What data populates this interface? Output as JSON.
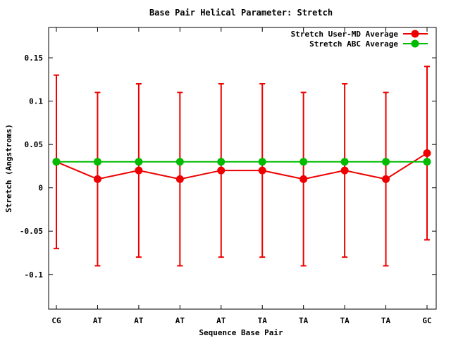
{
  "chart_data": {
    "type": "line",
    "title": "Base Pair Helical Parameter: Stretch",
    "xlabel": "Sequence Base Pair",
    "ylabel": "Stretch (Angstroms)",
    "categories": [
      "CG",
      "AT",
      "AT",
      "AT",
      "AT",
      "TA",
      "TA",
      "TA",
      "TA",
      "GC"
    ],
    "ylim": [
      -0.14,
      0.185
    ],
    "yticks": [
      -0.1,
      -0.05,
      0,
      0.05,
      0.1,
      0.15
    ],
    "ytick_labels": [
      "-0.1",
      "-0.05",
      "0",
      "0.05",
      "0.1",
      "0.15"
    ],
    "grid": false,
    "legend_position": "top-right",
    "series": [
      {
        "name": "Stretch User-MD Average",
        "color": "#ee0000",
        "values": [
          0.03,
          0.01,
          0.02,
          0.01,
          0.02,
          0.02,
          0.01,
          0.02,
          0.01,
          0.04
        ],
        "error": [
          0.1,
          0.1,
          0.1,
          0.1,
          0.1,
          0.1,
          0.1,
          0.1,
          0.1,
          0.1
        ]
      },
      {
        "name": "Stretch ABC Average",
        "color": "#00bb00",
        "values": [
          0.03,
          0.03,
          0.03,
          0.03,
          0.03,
          0.03,
          0.03,
          0.03,
          0.03,
          0.03
        ]
      }
    ]
  }
}
